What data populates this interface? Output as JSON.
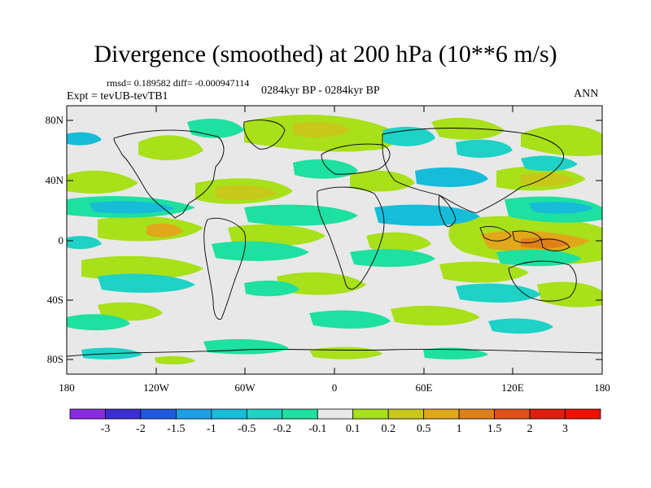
{
  "title": "Divergence (smoothed) at 200 hPa (10**6 m/s)",
  "stats_text": "rmsd= 0.189582  diff= -0.000947114",
  "experiment_text": "Expt = tevUB-tevTB1",
  "period_text": "0284kyr BP - 0284kyr BP",
  "season_text": "ANN",
  "map": {
    "lat_labels": [
      "80N",
      "40N",
      "0",
      "40S",
      "80S"
    ],
    "lon_labels": [
      "180",
      "120W",
      "60W",
      "0",
      "60E",
      "120E",
      "180"
    ],
    "background_color": "#e8e8e8"
  },
  "colorbar": {
    "labels": [
      "-3",
      "-2",
      "-1.5",
      "-1",
      "-0.5",
      "-0.2",
      "-0.1",
      "0.1",
      "0.2",
      "0.5",
      "1",
      "1.5",
      "2",
      "3"
    ],
    "colors": [
      "#8a2be2",
      "#3c2ed0",
      "#1e5ae0",
      "#1ea0e6",
      "#16bcd8",
      "#1ed2c6",
      "#1ee0a0",
      "#e8e8e8",
      "#a8e01a",
      "#c8c81a",
      "#e0a81a",
      "#e0801a",
      "#e0501a",
      "#e01e10",
      "#f01000"
    ]
  }
}
